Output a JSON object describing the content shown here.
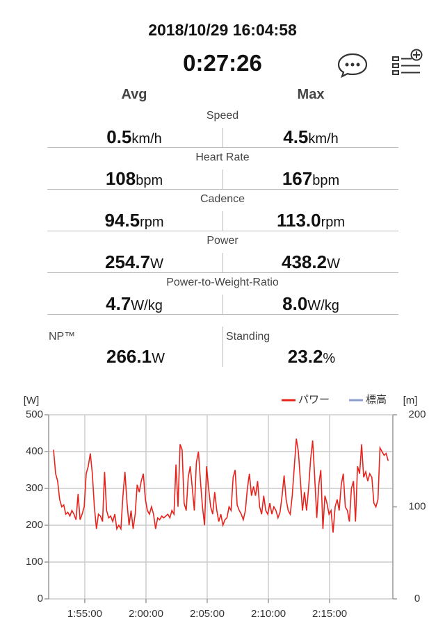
{
  "header": {
    "datetime": "2018/10/29 16:04:58",
    "duration": "0:27:26"
  },
  "columns": [
    "Avg",
    "Max"
  ],
  "rows": [
    {
      "label": "Speed",
      "avg": "0.5",
      "avg_unit": "km/h",
      "max": "4.5",
      "max_unit": "km/h"
    },
    {
      "label": "Heart Rate",
      "avg": "108",
      "avg_unit": "bpm",
      "max": "167",
      "max_unit": "bpm"
    },
    {
      "label": "Cadence",
      "avg": "94.5",
      "avg_unit": "rpm",
      "max": "113.0",
      "max_unit": "rpm"
    },
    {
      "label": "Power",
      "avg": "254.7",
      "avg_unit": "W",
      "max": "438.2",
      "max_unit": "W"
    },
    {
      "label": "Power-to-Weight-Ratio",
      "avg": "4.7",
      "avg_unit": "W/kg",
      "max": "8.0",
      "max_unit": "W/kg"
    }
  ],
  "extra": [
    {
      "label": "NP™",
      "value": "266.1",
      "unit": "W"
    },
    {
      "label": "Standing",
      "value": "23.2",
      "unit": "%"
    }
  ],
  "chart_data": {
    "type": "line",
    "ylabel": "[W]",
    "y2label": "[m]",
    "xlim": [
      6723,
      8410
    ],
    "xticks": [
      {
        "value": 6900,
        "label": "1:55:00"
      },
      {
        "value": 7200,
        "label": "2:00:00"
      },
      {
        "value": 7500,
        "label": "2:05:00"
      },
      {
        "value": 7800,
        "label": "2:10:00"
      },
      {
        "value": 8100,
        "label": "2:15:00"
      }
    ],
    "ylim": [
      0,
      500
    ],
    "yticks": [
      0,
      100,
      200,
      300,
      400,
      500
    ],
    "y2lim": [
      0,
      200
    ],
    "y2ticks": [
      0,
      100,
      200
    ],
    "grid": true,
    "extra_legend": [
      {
        "name": "標高",
        "color": "#8d9fcc"
      }
    ],
    "x": [
      6747,
      6757,
      6767,
      6777,
      6787,
      6797,
      6807,
      6817,
      6827,
      6837,
      6847,
      6857,
      6867,
      6877,
      6887,
      6897,
      6907,
      6917,
      6927,
      6937,
      6947,
      6957,
      6967,
      6977,
      6987,
      6997,
      7007,
      7017,
      7027,
      7037,
      7047,
      7057,
      7067,
      7077,
      7087,
      7097,
      7107,
      7117,
      7127,
      7137,
      7147,
      7157,
      7167,
      7177,
      7187,
      7197,
      7207,
      7217,
      7227,
      7237,
      7247,
      7257,
      7267,
      7277,
      7287,
      7297,
      7307,
      7317,
      7327,
      7337,
      7347,
      7357,
      7367,
      7377,
      7387,
      7397,
      7407,
      7417,
      7427,
      7437,
      7447,
      7457,
      7467,
      7477,
      7487,
      7497,
      7507,
      7517,
      7527,
      7537,
      7547,
      7557,
      7567,
      7577,
      7587,
      7597,
      7607,
      7617,
      7627,
      7637,
      7647,
      7657,
      7667,
      7677,
      7687,
      7697,
      7707,
      7717,
      7727,
      7737,
      7747,
      7757,
      7767,
      7777,
      7787,
      7797,
      7807,
      7817,
      7827,
      7837,
      7847,
      7857,
      7867,
      7877,
      7887,
      7897,
      7907,
      7917,
      7927,
      7937,
      7947,
      7957,
      7967,
      7977,
      7987,
      7997,
      8007,
      8017,
      8027,
      8037,
      8047,
      8057,
      8067,
      8077,
      8087,
      8097,
      8107,
      8117,
      8127,
      8137,
      8147,
      8157,
      8167,
      8177,
      8187,
      8197,
      8207,
      8217,
      8227,
      8237,
      8247,
      8257,
      8267,
      8277,
      8287,
      8297,
      8307,
      8317,
      8327,
      8337,
      8347,
      8357,
      8367,
      8377,
      8387
    ],
    "series": [
      {
        "name": "パワー",
        "color": "#e8231c",
        "values": [
          405,
          340,
          320,
          270,
          250,
          255,
          230,
          235,
          225,
          240,
          230,
          215,
          285,
          215,
          230,
          250,
          340,
          360,
          395,
          340,
          250,
          190,
          230,
          225,
          210,
          345,
          240,
          220,
          225,
          210,
          230,
          190,
          200,
          190,
          280,
          345,
          260,
          200,
          240,
          190,
          230,
          310,
          290,
          320,
          340,
          270,
          240,
          230,
          250,
          230,
          190,
          220,
          215,
          225,
          220,
          225,
          230,
          220,
          240,
          230,
          365,
          250,
          420,
          405,
          260,
          240,
          330,
          360,
          300,
          240,
          370,
          400,
          320,
          250,
          200,
          360,
          300,
          250,
          230,
          290,
          240,
          210,
          230,
          200,
          215,
          220,
          250,
          240,
          330,
          350,
          255,
          240,
          230,
          215,
          240,
          300,
          340,
          280,
          305,
          280,
          320,
          250,
          230,
          280,
          240,
          230,
          260,
          230,
          250,
          240,
          220,
          235,
          280,
          335,
          270,
          240,
          230,
          280,
          360,
          435,
          400,
          320,
          240,
          290,
          240,
          300,
          380,
          430,
          330,
          220,
          310,
          350,
          190,
          280,
          260,
          230,
          240,
          180,
          250,
          270,
          240,
          310,
          340,
          250,
          240,
          210,
          300,
          320,
          210,
          360,
          340,
          420,
          330,
          345,
          320,
          340,
          330,
          260,
          250,
          270,
          410,
          400,
          390,
          395,
          375
        ]
      }
    ]
  }
}
